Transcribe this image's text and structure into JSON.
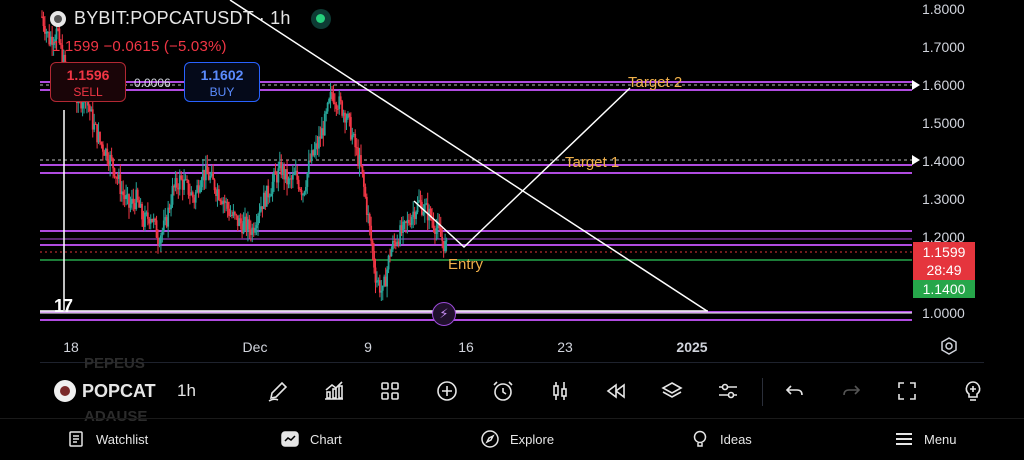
{
  "header": {
    "symbol_title": "BYBIT:POPCATUSDT · 1h",
    "price_change": "1.1599 −0.0615 (−5.03%)"
  },
  "trade": {
    "sell_price": "1.1596",
    "sell_label": "SELL",
    "spread": "0.0006",
    "buy_price": "1.1602",
    "buy_label": "BUY"
  },
  "price_axis": {
    "ticks": [
      "1.8000",
      "1.7000",
      "1.6000",
      "1.5000",
      "1.4000",
      "1.3000",
      "1.2000",
      "1.0000"
    ],
    "current_price": "1.1599",
    "countdown": "28:49",
    "marked_price": "1.1400"
  },
  "time_axis": {
    "ticks": [
      "18",
      "Dec",
      "9",
      "16",
      "23",
      "2025"
    ]
  },
  "annotations": {
    "target2": "Target 2",
    "target1": "Target 1",
    "entry": "Entry"
  },
  "logo_text": "17",
  "ghost_symbols": [
    "PEPEUS",
    "ADAUSE"
  ],
  "toolbar": {
    "symbol": "POPCAT",
    "interval": "1h",
    "icons": [
      "pencil-icon",
      "indicators-icon",
      "grid-icon",
      "plus-icon",
      "alarm-icon",
      "candles-icon",
      "replay-icon",
      "layers-icon",
      "sliders-icon",
      "undo-icon",
      "redo-icon",
      "fullscreen-icon",
      "bulb-icon"
    ]
  },
  "nav": {
    "watchlist": "Watchlist",
    "chart": "Chart",
    "explore": "Explore",
    "ideas": "Ideas",
    "menu": "Menu"
  },
  "colors": {
    "background": "#000000",
    "zone": "#b04be0",
    "down": "#f23645",
    "up": "#26a69a",
    "annotation": "#f0b04a",
    "entry_line": "#26a64a"
  },
  "chart_data": {
    "type": "candlestick",
    "timeframe": "1h",
    "ylim": [
      0.95,
      1.82
    ],
    "horizontal_zones": [
      {
        "low": 1.595,
        "high": 1.605
      },
      {
        "low": 1.365,
        "high": 1.385
      },
      {
        "low": 1.17,
        "high": 1.215
      },
      {
        "low": 0.985,
        "high": 1.005
      }
    ],
    "close_path": [
      1.78,
      1.72,
      1.74,
      1.66,
      1.62,
      1.55,
      1.58,
      1.5,
      1.45,
      1.42,
      1.38,
      1.32,
      1.28,
      1.3,
      1.24,
      1.26,
      1.2,
      1.23,
      1.32,
      1.35,
      1.33,
      1.3,
      1.37,
      1.36,
      1.33,
      1.3,
      1.26,
      1.24,
      1.23,
      1.22,
      1.28,
      1.31,
      1.35,
      1.38,
      1.34,
      1.36,
      1.32,
      1.4,
      1.44,
      1.5,
      1.58,
      1.55,
      1.52,
      1.45,
      1.38,
      1.25,
      1.1,
      1.05,
      1.16,
      1.2,
      1.22,
      1.26,
      1.29,
      1.27,
      1.24,
      1.2,
      1.16
    ]
  }
}
